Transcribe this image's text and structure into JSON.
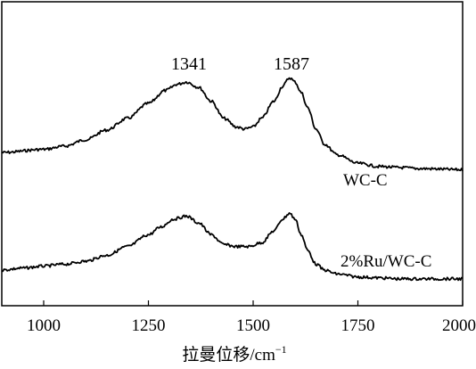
{
  "chart_data": {
    "type": "line",
    "xlabel": "拉曼位移/cm",
    "xlabel_sup": "−1",
    "ylabel": "",
    "xlim": [
      900,
      2000
    ],
    "xticks": [
      1000,
      1250,
      1500,
      1750,
      2000
    ],
    "y_ticks_shown": false,
    "grid": false,
    "annotations": [
      {
        "text": "1341",
        "x": 1341
      },
      {
        "text": "1587",
        "x": 1587
      }
    ],
    "series": [
      {
        "name": "WC-C",
        "x": [
          900,
          1000,
          1050,
          1100,
          1150,
          1200,
          1250,
          1290,
          1320,
          1341,
          1370,
          1400,
          1430,
          1460,
          1480,
          1500,
          1520,
          1550,
          1570,
          1587,
          1600,
          1615,
          1630,
          1650,
          1670,
          1700,
          1750,
          1800,
          1850,
          1900,
          2000
        ],
        "y": [
          0.34,
          0.37,
          0.4,
          0.46,
          0.55,
          0.66,
          0.8,
          0.92,
          0.98,
          1.0,
          0.95,
          0.82,
          0.66,
          0.58,
          0.56,
          0.58,
          0.66,
          0.82,
          0.96,
          1.04,
          1.0,
          0.9,
          0.76,
          0.56,
          0.42,
          0.32,
          0.24,
          0.21,
          0.2,
          0.19,
          0.18
        ]
      },
      {
        "name": "2%Ru/WC-C",
        "x": [
          900,
          950,
          1000,
          1050,
          1100,
          1150,
          1200,
          1250,
          1280,
          1310,
          1341,
          1370,
          1400,
          1430,
          1460,
          1490,
          1520,
          1550,
          1570,
          1587,
          1600,
          1615,
          1630,
          1650,
          1670,
          1700,
          1750,
          1800,
          1850,
          1900,
          2000
        ],
        "y": [
          0.0,
          0.02,
          0.04,
          0.06,
          0.09,
          0.15,
          0.24,
          0.36,
          0.44,
          0.52,
          0.55,
          0.48,
          0.36,
          0.26,
          0.24,
          0.24,
          0.28,
          0.4,
          0.52,
          0.58,
          0.52,
          0.36,
          0.2,
          0.06,
          0.0,
          -0.04,
          -0.07,
          -0.08,
          -0.09,
          -0.09,
          -0.09
        ]
      }
    ]
  }
}
